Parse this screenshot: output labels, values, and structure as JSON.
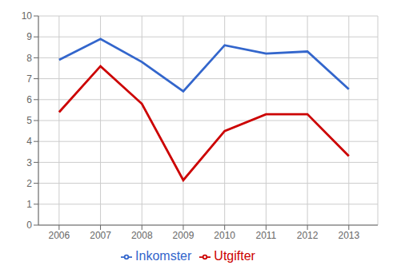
{
  "chart_data": {
    "type": "line",
    "x": [
      2006,
      2007,
      2008,
      2009,
      2010,
      2011,
      2012,
      2013
    ],
    "series": [
      {
        "name": "Inkomster",
        "color": "#3366CC",
        "values": [
          7.9,
          8.9,
          7.8,
          6.4,
          8.6,
          8.2,
          8.3,
          6.5
        ]
      },
      {
        "name": "Utgifter",
        "color": "#CC0000",
        "values": [
          5.4,
          7.6,
          5.8,
          2.15,
          4.5,
          5.3,
          5.3,
          3.3
        ]
      }
    ],
    "xlim": [
      2005.5,
      2013.7
    ],
    "xticks": [
      2006,
      2007,
      2008,
      2009,
      2010,
      2011,
      2012,
      2013
    ],
    "ylim": [
      0,
      10
    ],
    "yticks": [
      0,
      1,
      2,
      3,
      4,
      5,
      6,
      7,
      8,
      9,
      10
    ],
    "grid": true,
    "legend": "bottom"
  }
}
